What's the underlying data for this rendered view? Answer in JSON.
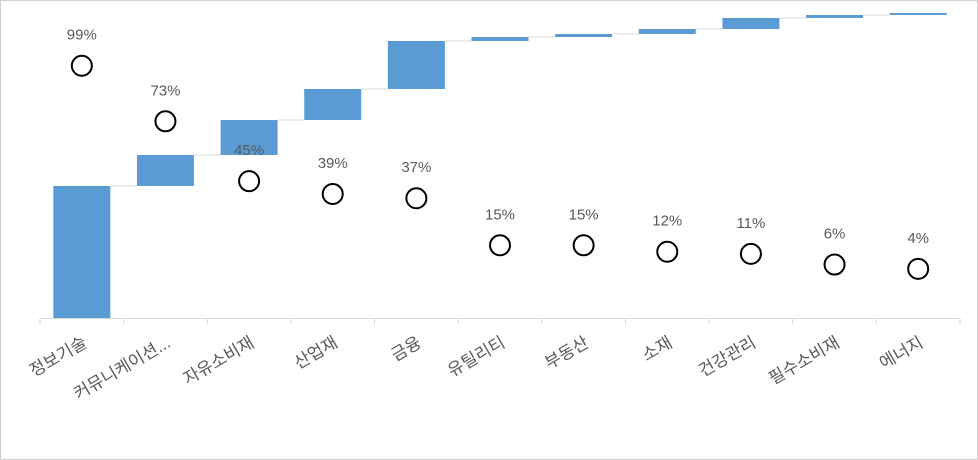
{
  "chart_data": {
    "type": "waterfall",
    "categories": [
      "정보기술",
      "커뮤니케이션...",
      "자유소비재",
      "산업재",
      "금융",
      "유틸리티",
      "부동산",
      "소재",
      "건강관리",
      "필수소비재",
      "에너지"
    ],
    "series": [
      {
        "color": "#5b9bd5",
        "values": [
          132,
          31,
          35,
          31,
          48,
          4,
          3,
          5,
          11,
          3,
          2
        ]
      },
      {
        "axis": "y2",
        "color": "#000000",
        "values": [
          99,
          73,
          45,
          39,
          37,
          15,
          15,
          12,
          11,
          6,
          4
        ],
        "value_labels": [
          "99%",
          "73%",
          "45%",
          "39%",
          "37%",
          "15%",
          "15%",
          "12%",
          "11%",
          "6%",
          "4%"
        ]
      }
    ],
    "ylim": [
      0,
      310
    ],
    "y2lim": [
      -19,
      126
    ]
  }
}
